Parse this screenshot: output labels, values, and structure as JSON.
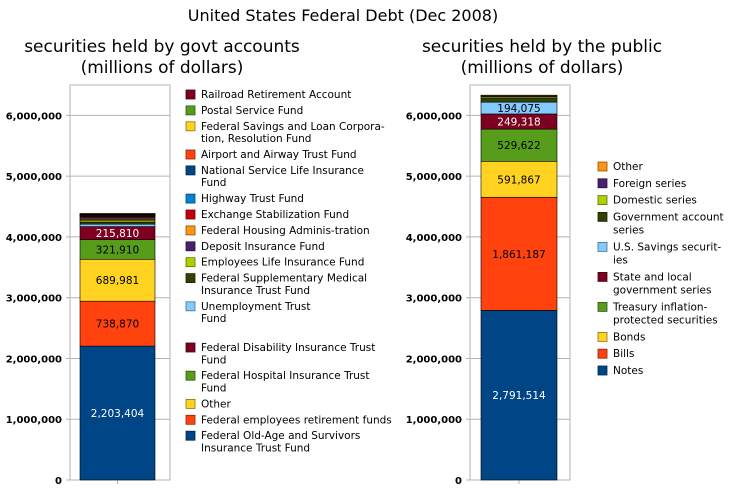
{
  "title": "United States Federal Debt (Dec 2008)",
  "chart_data": [
    {
      "type": "bar",
      "stacked": true,
      "title": "securities held by govt accounts",
      "subtitle": "(millions of dollars)",
      "ylim": [
        0,
        6500000
      ],
      "yticks": [
        "0",
        "1,000,000",
        "2,000,000",
        "3,000,000",
        "4,000,000",
        "5,000,000",
        "6,000,000"
      ],
      "grid": true,
      "legend_position": "right",
      "series": [
        {
          "name": "Federal Old-Age and Survivors Insurance Trust Fund",
          "value": 2203404,
          "label": "2,203,404",
          "color": "#004586"
        },
        {
          "name": "Federal employees retirement funds",
          "value": 738870,
          "label": "738,870",
          "color": "#ff420e"
        },
        {
          "name": "Other",
          "value": 689981,
          "label": "689,981",
          "color": "#ffd320"
        },
        {
          "name": "Federal Hospital Insurance Trust Fund",
          "value": 321910,
          "label": "321,910",
          "color": "#579d1c"
        },
        {
          "name": "Federal Disability Insurance Trust Fund",
          "value": 215810,
          "label": "215,810",
          "color": "#7e0021"
        },
        {
          "name": "Unemployment Trust Fund",
          "value": 40000,
          "color": "#83caff"
        },
        {
          "name": "Federal Supplementary Medical Insurance Trust Fund",
          "value": 35000,
          "color": "#314004"
        },
        {
          "name": "Employees Life Insurance Fund",
          "value": 30000,
          "color": "#aecf00"
        },
        {
          "name": "Deposit Insurance Fund",
          "value": 25000,
          "color": "#4b1f6f"
        },
        {
          "name": "Federal Housing Adminis-tration",
          "value": 20000,
          "color": "#ff950e"
        },
        {
          "name": "Exchange Stabilization Fund",
          "value": 16000,
          "color": "#c5000b"
        },
        {
          "name": "Highway Trust Fund",
          "value": 12000,
          "color": "#0084d1"
        },
        {
          "name": "National Service Life Insurance Fund",
          "value": 10000,
          "color": "#004586"
        },
        {
          "name": "Airport and Airway Trust Fund",
          "value": 9000,
          "color": "#ff420e"
        },
        {
          "name": "Federal Savings and Loan Corpora-tion, Resolution Fund",
          "value": 8000,
          "color": "#ffd320"
        },
        {
          "name": "Postal Service Fund",
          "value": 6000,
          "color": "#579d1c"
        },
        {
          "name": "Railroad Retirement Account",
          "value": 5000,
          "color": "#7e0021"
        }
      ]
    },
    {
      "type": "bar",
      "stacked": true,
      "title": "securities held by the public",
      "subtitle": "(millions of dollars)",
      "ylim": [
        0,
        6500000
      ],
      "yticks": [
        "0",
        "1,000,000",
        "2,000,000",
        "3,000,000",
        "4,000,000",
        "5,000,000",
        "6,000,000"
      ],
      "grid": true,
      "legend_position": "right",
      "series": [
        {
          "name": "Notes",
          "value": 2791514,
          "label": "2,791,514",
          "color": "#004586"
        },
        {
          "name": "Bills",
          "value": 1861187,
          "label": "1,861,187",
          "color": "#ff420e"
        },
        {
          "name": "Bonds",
          "value": 591867,
          "label": "591,867",
          "color": "#ffd320"
        },
        {
          "name": "Treasury inflation-protected securities",
          "value": 529622,
          "label": "529,622",
          "color": "#579d1c"
        },
        {
          "name": "State and local government series",
          "value": 249318,
          "label": "249,318",
          "color": "#7e0021"
        },
        {
          "name": "U.S. Savings securit-ies",
          "value": 194075,
          "label": "194,075",
          "color": "#83caff"
        },
        {
          "name": "Government account series",
          "value": 60000,
          "color": "#314004"
        },
        {
          "name": "Domestic series",
          "value": 25000,
          "color": "#aecf00"
        },
        {
          "name": "Foreign series",
          "value": 20000,
          "color": "#4b1f6f"
        },
        {
          "name": "Other",
          "value": 10000,
          "color": "#ff950e"
        }
      ]
    }
  ],
  "legends": {
    "left": [
      {
        "lines": [
          "Railroad Retirement Account"
        ],
        "color": "#7e0021"
      },
      {
        "lines": [
          "Postal Service Fund"
        ],
        "color": "#579d1c"
      },
      {
        "lines": [
          "Federal Savings and Loan Corpora-",
          "tion, Resolution Fund"
        ],
        "color": "#ffd320"
      },
      {
        "lines": [
          "Airport and Airway Trust Fund"
        ],
        "color": "#ff420e"
      },
      {
        "lines": [
          "National Service Life Insurance",
          "Fund"
        ],
        "color": "#004586"
      },
      {
        "lines": [
          "Highway Trust Fund"
        ],
        "color": "#0084d1"
      },
      {
        "lines": [
          "Exchange Stabilization Fund"
        ],
        "color": "#c5000b"
      },
      {
        "lines": [
          "Federal Housing Adminis-tration"
        ],
        "color": "#ff950e"
      },
      {
        "lines": [
          "Deposit Insurance Fund"
        ],
        "color": "#4b1f6f"
      },
      {
        "lines": [
          "Employees Life Insurance Fund"
        ],
        "color": "#aecf00"
      },
      {
        "lines": [
          "Federal Supplementary Medical",
          "Insurance Trust Fund"
        ],
        "color": "#314004"
      },
      {
        "lines": [
          "Unemployment Trust",
          "Fund"
        ],
        "color": "#83caff"
      },
      {
        "lines": [
          "Federal Disability Insurance Trust",
          "Fund"
        ],
        "color": "#7e0021",
        "gap": true
      },
      {
        "lines": [
          "Federal Hospital Insurance Trust",
          "Fund"
        ],
        "color": "#579d1c"
      },
      {
        "lines": [
          "Other"
        ],
        "color": "#ffd320"
      },
      {
        "lines": [
          "Federal employees retirement funds"
        ],
        "color": "#ff420e"
      },
      {
        "lines": [
          "Federal Old-Age and Survivors",
          "Insurance Trust Fund"
        ],
        "color": "#004586"
      }
    ],
    "right": [
      {
        "lines": [
          "Other"
        ],
        "color": "#ff950e"
      },
      {
        "lines": [
          "Foreign series"
        ],
        "color": "#4b1f6f"
      },
      {
        "lines": [
          "Domestic series"
        ],
        "color": "#aecf00"
      },
      {
        "lines": [
          "Government account",
          "series"
        ],
        "color": "#314004"
      },
      {
        "lines": [
          "U.S. Savings securit-",
          "ies"
        ],
        "color": "#83caff"
      },
      {
        "lines": [
          "State and local",
          "government series"
        ],
        "color": "#7e0021"
      },
      {
        "lines": [
          "Treasury inflation-",
          "protected securities"
        ],
        "color": "#579d1c"
      },
      {
        "lines": [
          "Bonds"
        ],
        "color": "#ffd320"
      },
      {
        "lines": [
          "Bills"
        ],
        "color": "#ff420e"
      },
      {
        "lines": [
          "Notes"
        ],
        "color": "#004586"
      }
    ]
  }
}
